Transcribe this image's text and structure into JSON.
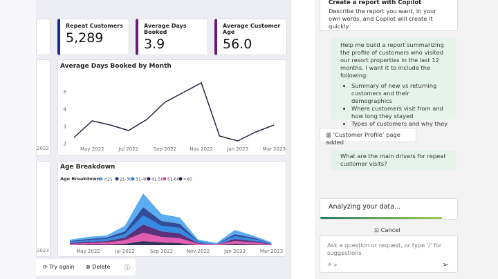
{
  "cards": [
    {
      "label": "Repeat Customers",
      "value": "5,289"
    },
    {
      "label": "Average Days Booked",
      "value": "3.9"
    },
    {
      "label": "Average Customer Age",
      "value": "56.0"
    }
  ],
  "line_chart": {
    "type": "line",
    "title": "Average Days Booked by Month",
    "x": [
      null,
      "May 2022",
      null,
      "Jul 2022",
      null,
      "Sep 2022",
      null,
      "Nov 2022",
      null,
      "Jan 2023",
      null,
      "Mar 2023"
    ],
    "values": [
      2.36,
      3.32,
      3.08,
      2.76,
      3.4,
      4.4,
      4.96,
      5.52,
      2.44,
      2.16,
      2.68,
      3.08
    ],
    "ylim": [
      1.8,
      5.8
    ],
    "yticks": [
      2,
      3,
      4,
      5
    ],
    "color": "#252540"
  },
  "area_chart": {
    "type": "area",
    "title": "Age Breakdown",
    "legend_title": "Age Breakdown",
    "x": [
      null,
      "May 2022",
      null,
      "Jul 2022",
      null,
      "Sep 2022",
      null,
      "Nov 2022",
      null,
      "Jan 2023",
      null,
      "Mar 2023"
    ],
    "series": [
      {
        "name": "<21",
        "color": "#4aa3f0",
        "values": [
          2,
          3,
          3,
          8,
          20,
          10,
          9,
          2,
          1,
          6,
          3,
          1
        ]
      },
      {
        "name": "21-30",
        "color": "#1b3a8f",
        "values": [
          1,
          2,
          2,
          4,
          12,
          7,
          6,
          1,
          0,
          3,
          2,
          0
        ]
      },
      {
        "name": "31-40",
        "color": "#1f7ee0",
        "values": [
          2,
          2,
          3,
          5,
          13,
          8,
          8,
          2,
          1,
          4,
          3,
          1
        ]
      },
      {
        "name": "41-50",
        "color": "#4b1a6e",
        "values": [
          1,
          2,
          2,
          4,
          12,
          8,
          7,
          1,
          0,
          3,
          2,
          1
        ]
      },
      {
        "name": "51-60",
        "color": "#e04aa8",
        "values": [
          2,
          2,
          3,
          5,
          12,
          8,
          7,
          2,
          1,
          4,
          3,
          1
        ]
      },
      {
        "name": ">60",
        "color": "#1c1c4a",
        "values": [
          0,
          1,
          1,
          2,
          6,
          4,
          3,
          0,
          0,
          2,
          1,
          0
        ]
      }
    ]
  },
  "left_panel": {
    "labels": [
      "2023",
      "2023"
    ]
  },
  "actions": {
    "try_again": "Try again",
    "delete": "Delete"
  },
  "copilot": {
    "title": "Create a report with Copilot",
    "intro": "Describe the report you want, in your own words, and Copilot will create it quickly.",
    "request": "Help me build a report summarizing the profile of customers who visited our resort properties in the last 12 months. I want it to include the following:",
    "bullets": [
      "Summary of new vs returning customers and their demographics",
      "Where customers visit from and how long they stayed",
      "Types of customers and why they visited"
    ],
    "page_added": "‘Customer Profile’ page added",
    "question": "What are the main drivers for repeat customer visits?",
    "status": "Analyzing your data...",
    "cancel": "Cancel",
    "input_placeholder": "Ask a question or request, or type '/' for suggestions"
  }
}
